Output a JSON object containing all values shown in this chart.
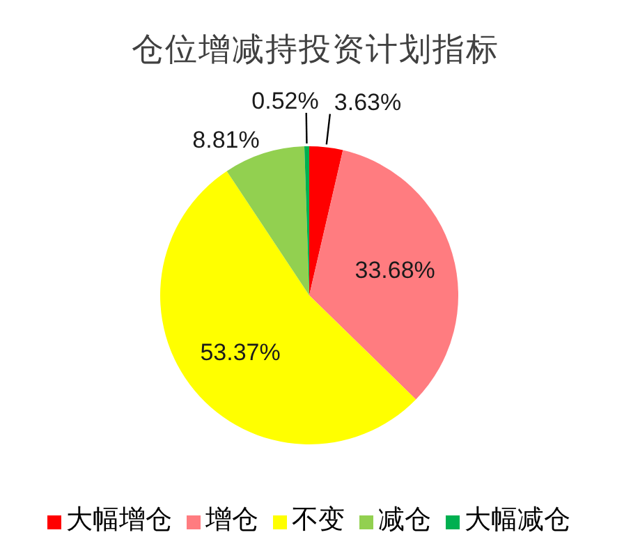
{
  "chart_data": {
    "type": "pie",
    "title": "仓位增减持投资计划指标",
    "categories": [
      "大幅增仓",
      "增仓",
      "不变",
      "减仓",
      "大幅减仓"
    ],
    "values": [
      3.63,
      33.68,
      53.37,
      8.81,
      0.52
    ],
    "colors": [
      "#ff0000",
      "#ff7c80",
      "#ffff00",
      "#92d050",
      "#00b050"
    ],
    "value_labels": [
      "3.63%",
      "33.68%",
      "53.37%",
      "8.81%",
      "0.52%"
    ],
    "legend": "bottom"
  }
}
